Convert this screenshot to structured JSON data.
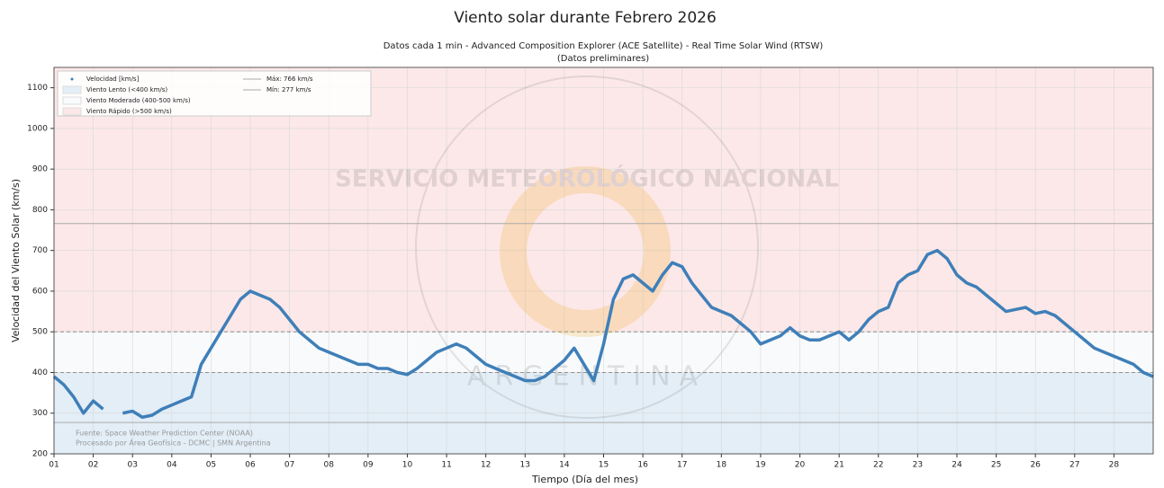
{
  "chart_data": {
    "type": "line",
    "title": "Viento solar durante Febrero 2026",
    "subtitle": [
      "Datos cada 1 min - Advanced Composition Explorer (ACE Satellite) - Real Time Solar Wind (RTSW)",
      "(Datos preliminares)"
    ],
    "xlabel": "Tiempo (Día del mes)",
    "ylabel": "Velocidad del Viento Solar (km/s)",
    "xlim": [
      1,
      29
    ],
    "ylim": [
      200,
      1150
    ],
    "xticks": [
      {
        "value": 1,
        "label": "01"
      },
      {
        "value": 2,
        "label": "02"
      },
      {
        "value": 3,
        "label": "03"
      },
      {
        "value": 4,
        "label": "04"
      },
      {
        "value": 5,
        "label": "05"
      },
      {
        "value": 6,
        "label": "06"
      },
      {
        "value": 7,
        "label": "07"
      },
      {
        "value": 8,
        "label": "08"
      },
      {
        "value": 9,
        "label": "09"
      },
      {
        "value": 10,
        "label": "10"
      },
      {
        "value": 11,
        "label": "11"
      },
      {
        "value": 12,
        "label": "12"
      },
      {
        "value": 13,
        "label": "13"
      },
      {
        "value": 14,
        "label": "14"
      },
      {
        "value": 15,
        "label": "15"
      },
      {
        "value": 16,
        "label": "16"
      },
      {
        "value": 17,
        "label": "17"
      },
      {
        "value": 18,
        "label": "18"
      },
      {
        "value": 19,
        "label": "19"
      },
      {
        "value": 20,
        "label": "20"
      },
      {
        "value": 21,
        "label": "21"
      },
      {
        "value": 22,
        "label": "22"
      },
      {
        "value": 23,
        "label": "23"
      },
      {
        "value": 24,
        "label": "24"
      },
      {
        "value": 25,
        "label": "25"
      },
      {
        "value": 26,
        "label": "26"
      },
      {
        "value": 27,
        "label": "27"
      },
      {
        "value": 28,
        "label": "28"
      }
    ],
    "yticks": [
      200,
      300,
      400,
      500,
      600,
      700,
      800,
      900,
      1000,
      1100
    ],
    "grid": true,
    "legend_position": "upper left",
    "bands": [
      {
        "name": "Viento Lento (<400 km/s)",
        "from": 200,
        "to": 400,
        "color": "#e3eef7"
      },
      {
        "name": "Viento Moderado (400-500 km/s)",
        "from": 400,
        "to": 500,
        "color": "#f8fafc"
      },
      {
        "name": "Viento Rápido (>500 km/s)",
        "from": 500,
        "to": 1150,
        "color": "#fce8e8"
      }
    ],
    "reference_lines": [
      {
        "value": 766,
        "label": "Máx: 766 km/s",
        "color": "#aaaaaa"
      },
      {
        "value": 277,
        "label": "Mín: 277 km/s",
        "color": "#aaaaaa"
      }
    ],
    "series": [
      {
        "name": "Velocidad [km/s]",
        "color": "#3f7fb8",
        "x": [
          1,
          1.25,
          1.5,
          1.75,
          2,
          2.25,
          2.5,
          2.75,
          3,
          3.25,
          3.5,
          3.75,
          4,
          4.25,
          4.5,
          4.75,
          5,
          5.25,
          5.5,
          5.75,
          6,
          6.25,
          6.5,
          6.75,
          7,
          7.25,
          7.5,
          7.75,
          8,
          8.25,
          8.5,
          8.75,
          9,
          9.25,
          9.5,
          9.75,
          10,
          10.25,
          10.5,
          10.75,
          11,
          11.25,
          11.5,
          11.75,
          12,
          12.25,
          12.5,
          12.75,
          13,
          13.25,
          13.5,
          13.75,
          14,
          14.25,
          14.5,
          14.75,
          15,
          15.25,
          15.5,
          15.75,
          16,
          16.25,
          16.5,
          16.75,
          17,
          17.25,
          17.5,
          17.75,
          18,
          18.25,
          18.5,
          18.75,
          19,
          19.25,
          19.5,
          19.75,
          20,
          20.25,
          20.5,
          20.75,
          21,
          21.25,
          21.5,
          21.75,
          22,
          22.25,
          22.5,
          22.75,
          23,
          23.25,
          23.5,
          23.75,
          24,
          24.25,
          24.5,
          24.75,
          25,
          25.25,
          25.5,
          25.75,
          26,
          26.25,
          26.5,
          26.75,
          27,
          27.25,
          27.5,
          27.75,
          28,
          28.25,
          28.5,
          28.75,
          29
        ],
        "values": [
          390,
          370,
          340,
          300,
          330,
          310,
          null,
          300,
          305,
          290,
          295,
          310,
          320,
          330,
          340,
          420,
          460,
          500,
          540,
          580,
          600,
          590,
          580,
          560,
          530,
          500,
          480,
          460,
          450,
          440,
          430,
          420,
          420,
          410,
          410,
          400,
          395,
          410,
          430,
          450,
          460,
          470,
          460,
          440,
          420,
          410,
          400,
          390,
          380,
          380,
          390,
          410,
          430,
          460,
          420,
          380,
          470,
          580,
          630,
          640,
          620,
          600,
          640,
          670,
          660,
          620,
          590,
          560,
          550,
          540,
          520,
          500,
          470,
          480,
          490,
          510,
          490,
          480,
          480,
          490,
          500,
          480,
          500,
          530,
          550,
          560,
          620,
          640,
          650,
          690,
          700,
          680,
          640,
          620,
          610,
          590,
          570,
          550,
          555,
          560,
          545,
          550,
          540,
          520,
          500,
          480,
          460,
          450,
          440,
          430,
          420,
          400,
          390
        ]
      }
    ],
    "source": [
      "Fuente: Space Weather Prediction Center (NOAA)",
      "Procesado por Área Geofísica - DCMC | SMN Argentina"
    ],
    "watermark": [
      "SERVICIO METEOROLÓGICO NACIONAL",
      "ARGENTINA"
    ]
  }
}
